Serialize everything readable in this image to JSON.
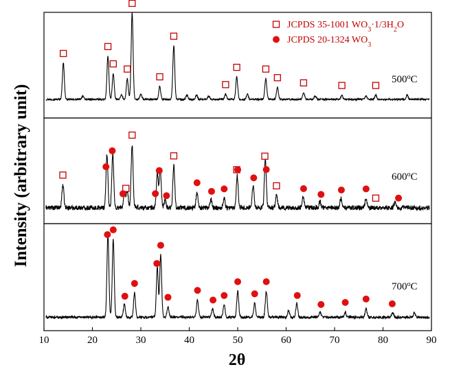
{
  "chart_data": {
    "type": "line",
    "xlabel": "2θ",
    "ylabel": "Intensity (arbitrary unit)",
    "xlim": [
      10,
      90
    ],
    "xticks": [
      10,
      20,
      30,
      40,
      50,
      60,
      70,
      80,
      90
    ],
    "legend": {
      "placement": "top-right",
      "entries": [
        {
          "marker": "open-square",
          "color": "#c00000",
          "text_main": "JCPDS 35-1001 WO",
          "sub1": "3",
          "text_mid": "·1/3H",
          "sub2": "2",
          "text_end": "O"
        },
        {
          "marker": "filled-circle",
          "color": "#e01010",
          "text_main": "JCPDS 20-1324 WO",
          "sub1": "3",
          "text_mid": "",
          "sub2": "",
          "text_end": ""
        }
      ]
    },
    "panels": [
      {
        "label_num": "500",
        "label_sup": "o",
        "label_unit": "C",
        "baseline": 0.12,
        "peaks": [
          [
            14.0,
            0.42
          ],
          [
            18.0,
            0.04
          ],
          [
            23.2,
            0.5
          ],
          [
            24.3,
            0.3
          ],
          [
            26.0,
            0.05
          ],
          [
            27.2,
            0.24
          ],
          [
            28.2,
            1.0
          ],
          [
            30.0,
            0.06
          ],
          [
            33.9,
            0.15
          ],
          [
            36.8,
            0.62
          ],
          [
            39.5,
            0.05
          ],
          [
            41.5,
            0.05
          ],
          [
            44.0,
            0.04
          ],
          [
            47.5,
            0.06
          ],
          [
            49.8,
            0.26
          ],
          [
            52.0,
            0.06
          ],
          [
            55.8,
            0.24
          ],
          [
            58.2,
            0.14
          ],
          [
            63.6,
            0.08
          ],
          [
            66.0,
            0.04
          ],
          [
            71.5,
            0.05
          ],
          [
            76.5,
            0.04
          ],
          [
            78.5,
            0.05
          ],
          [
            85.0,
            0.05
          ]
        ],
        "squares": [
          14.0,
          23.2,
          24.3,
          27.2,
          28.2,
          33.9,
          36.8,
          47.5,
          49.8,
          55.8,
          58.2,
          63.6,
          71.5,
          78.5
        ],
        "circles": []
      },
      {
        "label_num": "600",
        "label_sup": "o",
        "label_unit": "C",
        "baseline": 0.1,
        "peaks": [
          [
            13.9,
            0.3
          ],
          [
            23.0,
            0.68
          ],
          [
            24.2,
            0.7
          ],
          [
            26.6,
            0.18
          ],
          [
            27.2,
            0.22
          ],
          [
            28.2,
            0.82
          ],
          [
            33.4,
            0.45
          ],
          [
            34.0,
            0.5
          ],
          [
            35.0,
            0.1
          ],
          [
            36.8,
            0.55
          ],
          [
            41.6,
            0.2
          ],
          [
            44.5,
            0.1
          ],
          [
            47.2,
            0.12
          ],
          [
            49.9,
            0.42
          ],
          [
            53.2,
            0.3
          ],
          [
            55.7,
            0.62
          ],
          [
            58.0,
            0.16
          ],
          [
            63.5,
            0.14
          ],
          [
            67.0,
            0.08
          ],
          [
            71.3,
            0.12
          ],
          [
            76.5,
            0.12
          ],
          [
            82.5,
            0.08
          ]
        ],
        "squares": [
          13.9,
          26.9,
          28.2,
          36.8,
          49.8,
          55.6,
          58.0,
          78.5
        ],
        "circles": [
          22.8,
          24.1,
          26.3,
          33.0,
          33.8,
          35.3,
          41.6,
          44.6,
          47.2,
          50.0,
          53.3,
          55.9,
          63.6,
          67.2,
          71.4,
          76.5,
          83.2
        ]
      },
      {
        "label_num": "700",
        "label_sup": "o",
        "label_unit": "C",
        "baseline": 0.06,
        "peaks": [
          [
            23.2,
            0.96
          ],
          [
            24.3,
            0.9
          ],
          [
            26.6,
            0.15
          ],
          [
            28.7,
            0.28
          ],
          [
            33.4,
            0.58
          ],
          [
            34.1,
            0.72
          ],
          [
            35.6,
            0.12
          ],
          [
            41.7,
            0.2
          ],
          [
            44.8,
            0.1
          ],
          [
            47.2,
            0.14
          ],
          [
            50.0,
            0.3
          ],
          [
            53.5,
            0.16
          ],
          [
            55.9,
            0.3
          ],
          [
            60.5,
            0.08
          ],
          [
            62.2,
            0.16
          ],
          [
            67.0,
            0.06
          ],
          [
            72.2,
            0.06
          ],
          [
            76.5,
            0.1
          ],
          [
            82.0,
            0.05
          ],
          [
            86.5,
            0.05
          ]
        ],
        "squares": [],
        "circles": [
          23.1,
          24.3,
          26.7,
          28.7,
          33.3,
          34.1,
          35.6,
          41.7,
          44.9,
          47.2,
          50.0,
          53.5,
          55.9,
          62.3,
          67.2,
          72.2,
          76.5,
          81.9
        ]
      }
    ]
  }
}
